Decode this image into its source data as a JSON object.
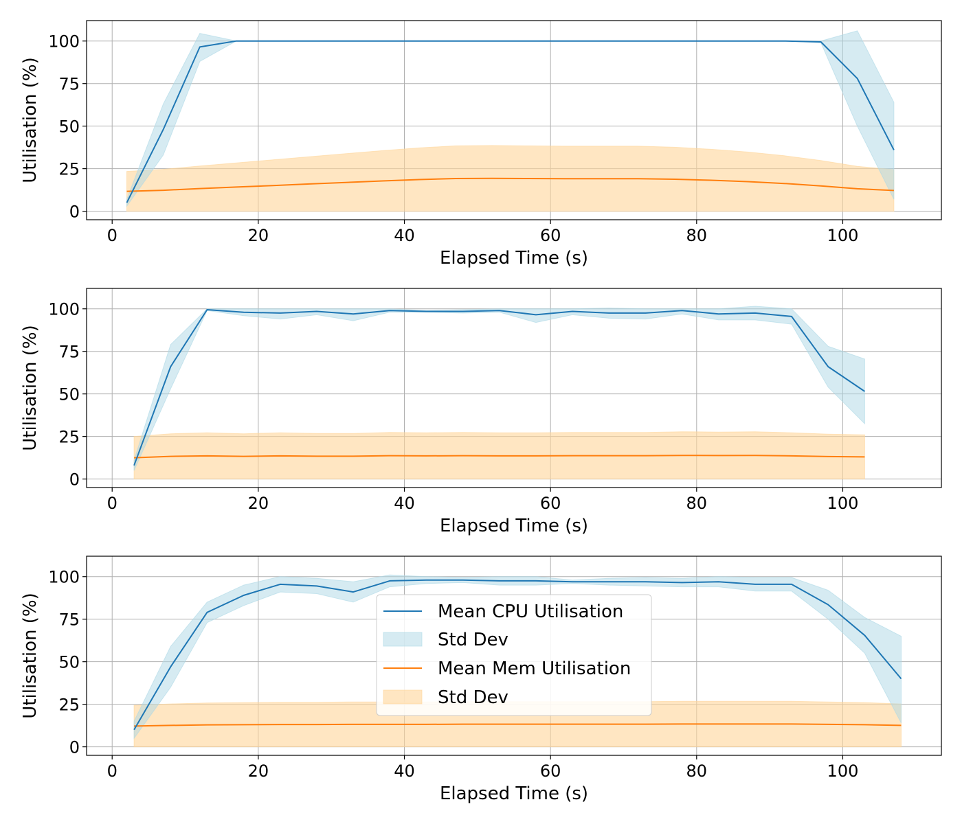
{
  "colors": {
    "cpu_line": "#1f77b4",
    "cpu_band": "#add8e6",
    "mem_line": "#ff7f0e",
    "mem_band": "#ffd699"
  },
  "legend": {
    "cpu_mean": "Mean CPU Utilisation",
    "cpu_std": "Std Dev",
    "mem_mean": "Mean Mem Utilisation",
    "mem_std": "Std Dev"
  },
  "chart_data": [
    {
      "type": "line",
      "xlabel": "Elapsed Time (s)",
      "ylabel": "Utilisation (%)",
      "xlim": [
        -3.5,
        113.5
      ],
      "ylim": [
        -5,
        112
      ],
      "xticks": [
        0,
        20,
        40,
        60,
        80,
        100
      ],
      "yticks": [
        0,
        25,
        50,
        75,
        100
      ],
      "grid": true,
      "series": [
        {
          "name": "Mean CPU Utilisation",
          "x": [
            2,
            7,
            12,
            17,
            22,
            27,
            32,
            37,
            42,
            47,
            52,
            57,
            62,
            67,
            72,
            77,
            82,
            87,
            92,
            97,
            102,
            107
          ],
          "mean": [
            5,
            48,
            96.5,
            100,
            100,
            100,
            100,
            100,
            100,
            100,
            100,
            100,
            100,
            100,
            100,
            100,
            100,
            100,
            100,
            99.5,
            78,
            36
          ],
          "std_low": [
            3,
            33,
            88,
            100,
            100,
            100,
            100,
            100,
            100,
            100,
            100,
            100,
            100,
            100,
            100,
            100,
            100,
            100,
            100,
            99,
            50,
            7
          ],
          "std_high": [
            7,
            63,
            104.5,
            100,
            100,
            100,
            100,
            100,
            100,
            100,
            100,
            100,
            100,
            100,
            100,
            100,
            100,
            100,
            100,
            100,
            106,
            64
          ]
        },
        {
          "name": "Mean Mem Utilisation",
          "x": [
            2,
            7,
            12,
            17,
            22,
            27,
            32,
            37,
            42,
            47,
            52,
            57,
            62,
            67,
            72,
            77,
            82,
            87,
            92,
            97,
            102,
            107
          ],
          "mean": [
            11.7,
            12.3,
            13.3,
            14.2,
            15.1,
            16.0,
            16.9,
            17.8,
            18.6,
            19.2,
            19.3,
            19.2,
            19.1,
            19.1,
            19.1,
            18.8,
            18.2,
            17.4,
            16.3,
            14.9,
            13.2,
            12.2
          ],
          "std_low": [
            0,
            0,
            0,
            0,
            0,
            0,
            0,
            0,
            0,
            0,
            0,
            0,
            0,
            0,
            0,
            0,
            0,
            0,
            0,
            0,
            0,
            0
          ],
          "std_high": [
            23.4,
            24.6,
            26.6,
            28.4,
            30.2,
            32.0,
            33.8,
            35.6,
            37.2,
            38.4,
            38.6,
            38.4,
            38.2,
            38.2,
            38.2,
            37.6,
            36.4,
            34.8,
            32.6,
            29.8,
            26.4,
            24.4
          ]
        }
      ]
    },
    {
      "type": "line",
      "xlabel": "Elapsed Time (s)",
      "ylabel": "Utilisation (%)",
      "xlim": [
        -3.5,
        113.5
      ],
      "ylim": [
        -5,
        112
      ],
      "xticks": [
        0,
        20,
        40,
        60,
        80,
        100
      ],
      "yticks": [
        0,
        25,
        50,
        75,
        100
      ],
      "grid": true,
      "series": [
        {
          "name": "Mean CPU Utilisation",
          "x": [
            3,
            8,
            13,
            18,
            23,
            28,
            33,
            38,
            43,
            48,
            53,
            58,
            63,
            68,
            73,
            78,
            83,
            88,
            93,
            98,
            103
          ],
          "mean": [
            8,
            66,
            99.5,
            98,
            97.5,
            98.5,
            97,
            99,
            98.5,
            98.5,
            99,
            96.5,
            98.5,
            97.5,
            97.5,
            99,
            97,
            97.5,
            95.5,
            66,
            51.5
          ],
          "std_low": [
            5,
            53,
            99,
            96,
            94,
            96.5,
            93,
            98,
            98,
            97.5,
            98,
            92,
            96.5,
            94.5,
            94,
            97,
            93.5,
            93.5,
            91,
            54,
            32.5
          ],
          "std_high": [
            11,
            79,
            100,
            100,
            100,
            100,
            100,
            100,
            99,
            99.5,
            100,
            100,
            100,
            100.5,
            100,
            100,
            100,
            101.5,
            100,
            78,
            70.5
          ]
        },
        {
          "name": "Mean Mem Utilisation",
          "x": [
            3,
            8,
            13,
            18,
            23,
            28,
            33,
            38,
            43,
            48,
            53,
            58,
            63,
            68,
            73,
            78,
            83,
            88,
            93,
            98,
            103
          ],
          "mean": [
            12.5,
            13.3,
            13.6,
            13.3,
            13.6,
            13.4,
            13.4,
            13.7,
            13.6,
            13.7,
            13.6,
            13.6,
            13.7,
            13.7,
            13.7,
            13.9,
            13.8,
            13.9,
            13.6,
            13.2,
            13.0
          ],
          "std_low": [
            0,
            0,
            0,
            0,
            0,
            0,
            0,
            0,
            0,
            0,
            0,
            0,
            0,
            0,
            0,
            0,
            0,
            0,
            0,
            0,
            0
          ],
          "std_high": [
            25.0,
            26.6,
            27.2,
            26.6,
            27.2,
            26.8,
            26.8,
            27.4,
            27.2,
            27.4,
            27.2,
            27.2,
            27.4,
            27.4,
            27.4,
            27.8,
            27.6,
            27.8,
            27.2,
            26.4,
            26.0
          ]
        }
      ]
    },
    {
      "type": "line",
      "xlabel": "Elapsed Time (s)",
      "ylabel": "Utilisation (%)",
      "xlim": [
        -3.5,
        113.5
      ],
      "ylim": [
        -5,
        112
      ],
      "xticks": [
        0,
        20,
        40,
        60,
        80,
        100
      ],
      "yticks": [
        0,
        25,
        50,
        75,
        100
      ],
      "grid": true,
      "legend": "center",
      "series": [
        {
          "name": "Mean CPU Utilisation",
          "x": [
            3,
            8,
            13,
            18,
            23,
            28,
            33,
            38,
            43,
            48,
            53,
            58,
            63,
            68,
            73,
            78,
            83,
            88,
            93,
            98,
            103,
            108
          ],
          "mean": [
            10,
            47,
            79,
            89,
            95.5,
            94.5,
            91,
            97.5,
            98,
            98,
            97.5,
            97.5,
            97,
            97,
            97,
            96.5,
            97,
            95.5,
            95.5,
            83.5,
            65.5,
            40
          ],
          "std_low": [
            5,
            35,
            73,
            83,
            91,
            90,
            85,
            94,
            96,
            96.5,
            95,
            95,
            96,
            95,
            94.5,
            94,
            94,
            91.5,
            91.5,
            75,
            55,
            14
          ],
          "std_high": [
            15,
            59,
            85,
            95,
            100,
            99,
            97,
            101,
            100,
            99.5,
            100,
            100,
            98,
            99,
            99.5,
            99,
            100,
            99.5,
            99.5,
            92,
            76,
            65
          ]
        },
        {
          "name": "Mean Mem Utilisation",
          "x": [
            3,
            8,
            13,
            18,
            23,
            28,
            33,
            38,
            43,
            48,
            53,
            58,
            63,
            68,
            73,
            78,
            83,
            88,
            93,
            98,
            103,
            108
          ],
          "mean": [
            12.2,
            12.6,
            12.9,
            13.0,
            13.1,
            13.1,
            13.2,
            13.2,
            13.2,
            13.3,
            13.3,
            13.3,
            13.3,
            13.3,
            13.3,
            13.4,
            13.4,
            13.4,
            13.4,
            13.2,
            13.0,
            12.6
          ],
          "std_low": [
            0,
            0,
            0,
            0,
            0,
            0,
            0,
            0,
            0,
            0,
            0,
            0,
            0,
            0,
            0,
            0,
            0,
            0,
            0,
            0,
            0,
            0
          ],
          "std_high": [
            24.4,
            25.2,
            25.8,
            26.0,
            26.2,
            26.2,
            26.4,
            26.4,
            26.4,
            26.6,
            26.6,
            26.6,
            26.6,
            26.6,
            26.6,
            26.8,
            26.8,
            26.8,
            26.8,
            26.4,
            26.0,
            25.2
          ]
        }
      ]
    }
  ]
}
